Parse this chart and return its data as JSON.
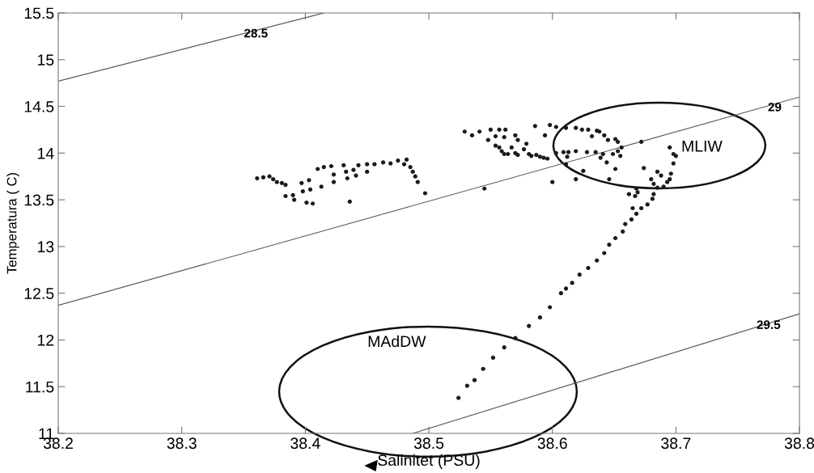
{
  "chart_data": {
    "type": "scatter",
    "xlabel": "Salinitet (PSU)",
    "ylabel": "Temperatura ( C)",
    "xlim": [
      38.2,
      38.8
    ],
    "ylim": [
      11,
      15.5
    ],
    "xticks": [
      38.2,
      38.3,
      38.4,
      38.5,
      38.6,
      38.7,
      38.8
    ],
    "yticks": [
      11,
      11.5,
      12,
      12.5,
      13,
      13.5,
      14,
      14.5,
      15,
      15.5
    ],
    "grid": false,
    "legend": false,
    "series": [
      {
        "type": "line",
        "color": "#555555",
        "line_style": "solid",
        "x": [
          38.2,
          38.415
        ],
        "values": [
          14.77,
          15.5
        ]
      },
      {
        "type": "line",
        "color": "#555555",
        "line_style": "solid",
        "x": [
          38.2,
          38.8
        ],
        "values": [
          12.37,
          14.6
        ]
      },
      {
        "type": "line",
        "color": "#555555",
        "line_style": "solid",
        "x": [
          38.487,
          38.8
        ],
        "values": [
          11,
          12.28
        ]
      },
      {
        "color": "#1a1a1a",
        "marker": "circle",
        "x": [
          38.361,
          38.366,
          38.371,
          38.374,
          38.377,
          38.381,
          38.384,
          38.384,
          38.39,
          38.391,
          38.397,
          38.403,
          38.398,
          38.404,
          38.401,
          38.406,
          38.413,
          38.41,
          38.415,
          38.421,
          38.423,
          38.423,
          38.431,
          38.433,
          38.434,
          38.436,
          38.439,
          38.441,
          38.443,
          38.45,
          38.45,
          38.456,
          38.463,
          38.469,
          38.475,
          38.482,
          38.48,
          38.485,
          38.487,
          38.489,
          38.491,
          38.497,
          38.529,
          38.535,
          38.541,
          38.55,
          38.557,
          38.562,
          38.554,
          38.561,
          38.548,
          38.554,
          38.559,
          38.564,
          38.57,
          38.577,
          38.581,
          38.587,
          38.593,
          38.57,
          38.572,
          38.579,
          38.545,
          38.586,
          38.594,
          38.598,
          38.603,
          38.611,
          38.619,
          38.624,
          38.629,
          38.636,
          38.638,
          38.642,
          38.645,
          38.651,
          38.653,
          38.632,
          38.656,
          38.603,
          38.609,
          38.613,
          38.619,
          38.628,
          38.635,
          38.641,
          38.649,
          38.653,
          38.655,
          38.639,
          38.644,
          38.612,
          38.611,
          38.625,
          38.651,
          38.646,
          38.619,
          38.6,
          38.672,
          38.695,
          38.698,
          38.7,
          38.698,
          38.674,
          38.685,
          38.688,
          38.696,
          38.695,
          38.693,
          38.68,
          38.682,
          38.685,
          38.69,
          38.668,
          38.669,
          38.662,
          38.667,
          38.682,
          38.681,
          38.677,
          38.672,
          38.665,
          38.668,
          38.664,
          38.659,
          38.657,
          38.651,
          38.646,
          38.642,
          38.636,
          38.629,
          38.622,
          38.616,
          38.611,
          38.607,
          38.598,
          38.59,
          38.581,
          38.57,
          38.561,
          38.552,
          38.544,
          38.537,
          38.531,
          38.524,
          38.561,
          38.572,
          38.583,
          38.59,
          38.596,
          38.557,
          38.567
        ],
        "values": [
          13.73,
          13.74,
          13.75,
          13.72,
          13.69,
          13.68,
          13.66,
          13.54,
          13.55,
          13.5,
          13.68,
          13.71,
          13.59,
          13.61,
          13.47,
          13.46,
          13.64,
          13.83,
          13.85,
          13.86,
          13.77,
          13.69,
          13.87,
          13.8,
          13.73,
          13.48,
          13.82,
          13.76,
          13.87,
          13.88,
          13.8,
          13.88,
          13.9,
          13.89,
          13.92,
          13.93,
          13.88,
          13.85,
          13.8,
          13.75,
          13.69,
          13.57,
          14.23,
          14.19,
          14.23,
          14.25,
          14.25,
          14.25,
          14.18,
          14.17,
          14.14,
          14.08,
          14.02,
          13.99,
          14.0,
          14.04,
          13.99,
          13.98,
          13.95,
          14.19,
          14.14,
          14.1,
          13.62,
          14.29,
          14.19,
          14.3,
          14.28,
          14.27,
          14.27,
          14.25,
          14.25,
          14.24,
          14.23,
          14.19,
          14.14,
          14.15,
          14.12,
          14.18,
          14.06,
          14.0,
          14.01,
          14.01,
          14.02,
          14.01,
          14.01,
          13.99,
          13.99,
          14.02,
          13.97,
          13.95,
          13.9,
          13.96,
          13.88,
          13.81,
          13.83,
          13.72,
          13.72,
          13.69,
          14.12,
          14.06,
          13.99,
          13.97,
          13.89,
          13.84,
          13.8,
          13.76,
          13.78,
          13.72,
          13.69,
          13.72,
          13.67,
          13.63,
          13.64,
          13.62,
          13.58,
          13.56,
          13.54,
          13.56,
          13.51,
          13.45,
          13.41,
          13.41,
          13.35,
          13.29,
          13.24,
          13.16,
          13.09,
          13.02,
          12.93,
          12.85,
          12.77,
          12.7,
          12.61,
          12.55,
          12.5,
          12.35,
          12.24,
          12.15,
          12.02,
          11.92,
          11.81,
          11.69,
          11.57,
          11.51,
          11.38,
          13.99,
          13.98,
          13.97,
          13.96,
          13.94,
          14.06,
          14.06
        ]
      }
    ],
    "annotations": [
      {
        "text": "28.5",
        "x": 38.36,
        "y": 15.32
      },
      {
        "text": "29",
        "x": 38.78,
        "y": 14.53
      },
      {
        "text": "29.5",
        "x": 38.775,
        "y": 12.2
      },
      "MLIW",
      "MAdDW"
    ]
  }
}
